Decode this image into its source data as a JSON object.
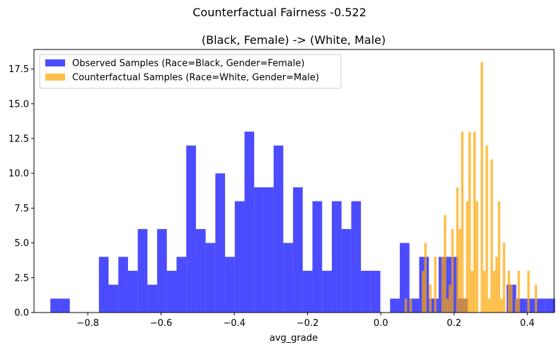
{
  "figure": {
    "suptitle": "Counterfactual Fairness -0.522"
  },
  "chart_data": {
    "type": "histogram",
    "title": "(Black, Female) -> (White, Male)",
    "xlabel": "avg_grade",
    "ylabel": "",
    "xlim": [
      -0.947,
      0.473
    ],
    "ylim": [
      0,
      18.9
    ],
    "xticks": [
      -0.8,
      -0.6,
      -0.4,
      -0.2,
      0.0,
      0.2,
      0.4
    ],
    "xtick_labels": [
      "−0.8",
      "−0.6",
      "−0.4",
      "−0.2",
      "0.0",
      "0.2",
      "0.4"
    ],
    "yticks": [
      0,
      2.5,
      5,
      7.5,
      10,
      12.5,
      15,
      17.5
    ],
    "ytick_labels": [
      "0.0",
      "2.5",
      "5.0",
      "7.5",
      "10.0",
      "12.5",
      "15.0",
      "17.5"
    ],
    "grid": false,
    "legend_position": "upper-left",
    "series": [
      {
        "name": "Observed Samples (Race=Black, Gender=Female)",
        "color": "#0000ff",
        "opacity": 0.7,
        "bin_start": -0.9022,
        "bin_width": 0.0265,
        "counts": [
          1,
          1,
          0,
          0,
          0,
          4,
          2,
          4,
          3,
          6,
          2,
          6,
          3,
          4,
          12,
          6,
          5,
          10,
          4,
          8,
          13,
          9,
          9,
          12,
          5,
          9,
          3,
          8,
          3,
          8,
          6,
          8,
          3,
          3,
          0,
          1,
          5,
          1,
          4,
          1,
          4,
          4,
          1,
          0,
          0,
          0,
          0,
          2,
          1,
          1,
          1,
          1
        ]
      },
      {
        "name": "Counterfactual Samples (Race=White, Gender=Male)",
        "color": "#ffa500",
        "opacity": 0.7,
        "bin_start": 0.065,
        "bin_width": 0.0067,
        "counts": [
          1,
          0,
          1,
          0,
          0,
          0,
          0,
          3,
          5,
          0,
          2,
          0,
          4,
          0,
          0,
          4,
          7,
          1,
          2,
          6,
          0,
          9,
          6,
          13,
          1,
          8,
          13,
          3,
          13,
          8,
          0,
          18,
          3,
          12,
          1,
          11,
          3,
          4,
          8,
          1,
          5,
          0,
          3,
          2,
          0,
          1,
          3,
          0,
          0,
          0,
          3,
          0,
          0,
          2,
          0
        ]
      }
    ]
  }
}
